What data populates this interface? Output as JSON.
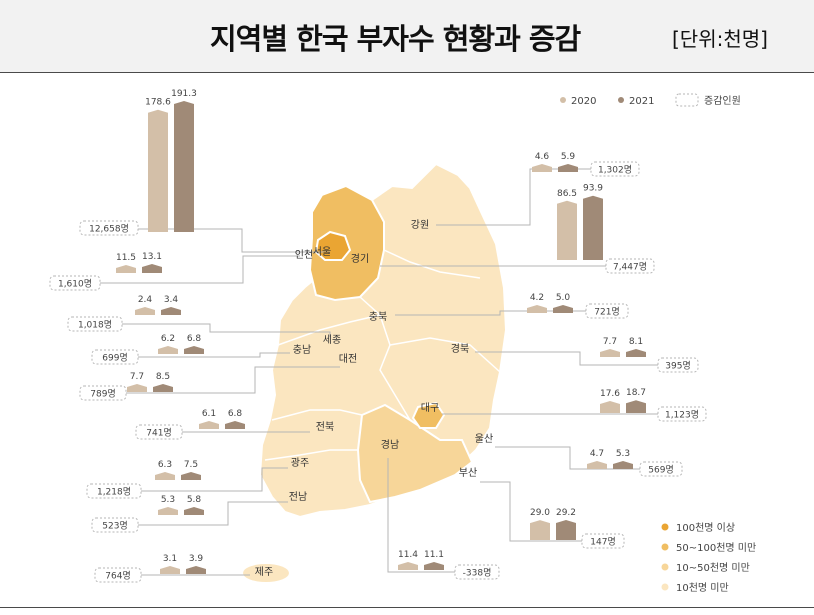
{
  "title": "지역별 한국 부자수 현황과 증감",
  "unit": "[단위:천명]",
  "colors": {
    "c2020": "#d3bfa8",
    "c2021": "#a08a77",
    "over100": "#eaa533",
    "r50_100": "#f0be62",
    "r10_50": "#f7d699",
    "under10": "#fbe6c0",
    "leader": "#b5b5b5"
  },
  "legend": {
    "y2020": "2020",
    "y2021": "2021",
    "diff": "증감인원",
    "over100": "100천명 이상",
    "r50_100": "50~100천명 미만",
    "r10_50": "10~50천명 미만",
    "under10": "10천명 미만"
  },
  "chart_data": {
    "type": "bar",
    "series_names": [
      "2020",
      "2021"
    ],
    "regions": [
      {
        "name": "서울",
        "v2020": 178.6,
        "v2021": 191.3,
        "diff": "12,658명"
      },
      {
        "name": "인천",
        "v2020": 11.5,
        "v2021": 13.1,
        "diff": "1,610명"
      },
      {
        "name": "세종",
        "v2020": 2.4,
        "v2021": 3.4,
        "diff": "1,018명"
      },
      {
        "name": "충남",
        "v2020": 6.2,
        "v2021": 6.8,
        "diff": "699명"
      },
      {
        "name": "대전",
        "v2020": 7.7,
        "v2021": 8.5,
        "diff": "789명"
      },
      {
        "name": "전북",
        "v2020": 6.1,
        "v2021": 6.8,
        "diff": "741명"
      },
      {
        "name": "광주",
        "v2020": 6.3,
        "v2021": 7.5,
        "diff": "1,218명"
      },
      {
        "name": "전남",
        "v2020": 5.3,
        "v2021": 5.8,
        "diff": "523명"
      },
      {
        "name": "제주",
        "v2020": 3.1,
        "v2021": 3.9,
        "diff": "764명"
      },
      {
        "name": "강원",
        "v2020": 4.6,
        "v2021": 5.9,
        "diff": "1,302명"
      },
      {
        "name": "경기",
        "v2020": 86.5,
        "v2021": 93.9,
        "diff": "7,447명"
      },
      {
        "name": "충북",
        "v2020": 4.2,
        "v2021": 5.0,
        "diff": "721명"
      },
      {
        "name": "경북",
        "v2020": 7.7,
        "v2021": 8.1,
        "diff": "395명"
      },
      {
        "name": "대구",
        "v2020": 17.6,
        "v2021": 18.7,
        "diff": "1,123명"
      },
      {
        "name": "울산",
        "v2020": 4.7,
        "v2021": 5.3,
        "diff": "569명"
      },
      {
        "name": "부산",
        "v2020": 29.0,
        "v2021": 29.2,
        "diff": "147명"
      },
      {
        "name": "경남",
        "v2020": 11.4,
        "v2021": 11.1,
        "diff": "-338명"
      }
    ]
  }
}
